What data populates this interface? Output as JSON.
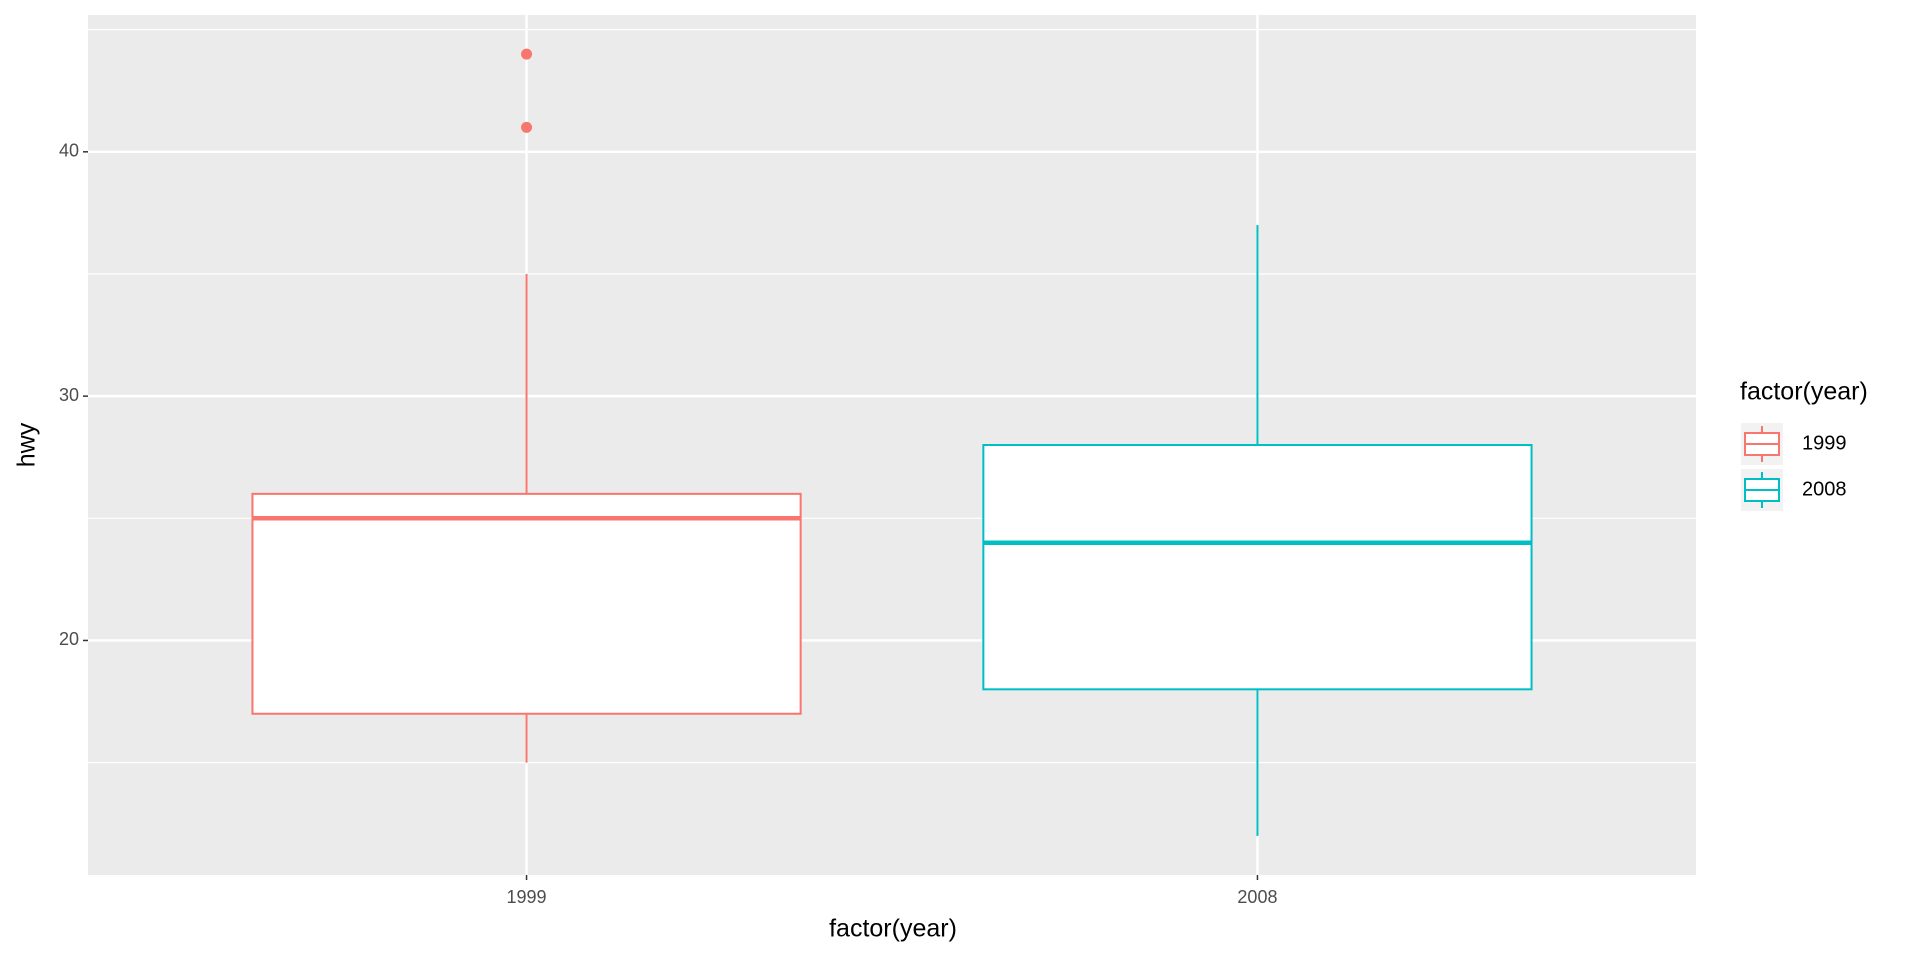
{
  "chart_data": {
    "type": "box",
    "x_label": "factor(year)",
    "y_label": "hwy",
    "categories": [
      "1999",
      "2008"
    ],
    "ylim": [
      10.4,
      45.6
    ],
    "yticks": [
      20,
      30,
      40
    ],
    "minor_yticks": [
      15,
      25,
      35,
      45
    ],
    "grid": true,
    "legend_title": "factor(year)",
    "legend_position": "right",
    "series": [
      {
        "name": "1999",
        "color": "#f8766d",
        "whisker_low": 15,
        "q1": 17,
        "median": 25,
        "q3": 26,
        "whisker_high": 35,
        "outliers": [
          44,
          41
        ]
      },
      {
        "name": "2008",
        "color": "#00bfc4",
        "whisker_low": 12,
        "q1": 18,
        "median": 24,
        "q3": 28,
        "whisker_high": 37,
        "outliers": []
      }
    ]
  }
}
